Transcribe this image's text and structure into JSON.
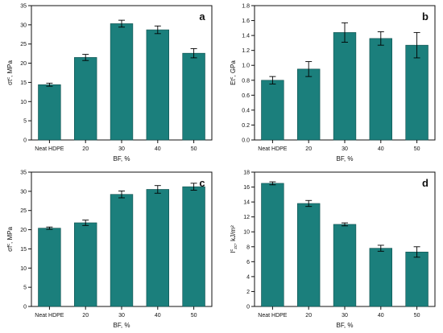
{
  "theme": {
    "bar_fill": "#1b7f7c",
    "bar_stroke": "#0f4f4d",
    "axis": "#111111"
  },
  "chart_data": [
    {
      "type": "bar",
      "panel_label": "a",
      "ylabel_main": "σt",
      "ylabel_sup": "c",
      "ylabel_suffix": ", MPa",
      "xlabel": "BF, %",
      "categories": [
        "Neat HDPE",
        "20",
        "30",
        "40",
        "50"
      ],
      "values": [
        14.4,
        21.5,
        30.3,
        28.7,
        22.6
      ],
      "errors": [
        0.4,
        0.8,
        0.9,
        1.0,
        1.2
      ],
      "ylim": [
        0,
        35
      ],
      "yticks": [
        "0",
        "5",
        "10",
        "15",
        "20",
        "25",
        "30",
        "35"
      ],
      "ytick_values": [
        0,
        5,
        10,
        15,
        20,
        25,
        30,
        35
      ]
    },
    {
      "type": "bar",
      "panel_label": "b",
      "ylabel_main": "Et",
      "ylabel_sup": "c",
      "ylabel_suffix": ", GPa",
      "xlabel": "BF, %",
      "categories": [
        "Neat HDPE",
        "20",
        "30",
        "40",
        "50"
      ],
      "values": [
        0.8,
        0.95,
        1.44,
        1.36,
        1.27
      ],
      "errors": [
        0.05,
        0.1,
        0.13,
        0.09,
        0.17
      ],
      "ylim": [
        0,
        1.8
      ],
      "yticks": [
        "0.0",
        "0.2",
        "0.4",
        "0.6",
        "0.8",
        "1.0",
        "1.2",
        "1.4",
        "1.6",
        "1.8"
      ],
      "ytick_values": [
        0,
        0.2,
        0.4,
        0.6,
        0.8,
        1.0,
        1.2,
        1.4,
        1.6,
        1.8
      ]
    },
    {
      "type": "bar",
      "panel_label": "c",
      "ylabel_main": "σf",
      "ylabel_sup": "c",
      "ylabel_suffix": ", MPa",
      "xlabel": "BF, %",
      "categories": [
        "Neat HDPE",
        "20",
        "30",
        "40",
        "50"
      ],
      "values": [
        20.4,
        21.8,
        29.2,
        30.5,
        31.2
      ],
      "errors": [
        0.3,
        0.7,
        0.9,
        1.0,
        0.9
      ],
      "ylim": [
        0,
        35
      ],
      "yticks": [
        "0",
        "5",
        "10",
        "15",
        "20",
        "25",
        "30",
        "35"
      ],
      "ytick_values": [
        0,
        5,
        10,
        15,
        20,
        25,
        30,
        35
      ]
    },
    {
      "type": "bar",
      "panel_label": "d",
      "ylabel_main": "I",
      "ylabel_sup": "c",
      "ylabel_sub": "zc",
      "ylabel_suffix": ", kJ/m²",
      "xlabel": "BF, %",
      "categories": [
        "Neat HDPE",
        "20",
        "30",
        "40",
        "50"
      ],
      "values": [
        16.5,
        13.8,
        11.0,
        7.8,
        7.3
      ],
      "errors": [
        0.2,
        0.4,
        0.2,
        0.4,
        0.7
      ],
      "ylim": [
        0,
        18
      ],
      "yticks": [
        "0",
        "2",
        "4",
        "6",
        "8",
        "10",
        "12",
        "14",
        "16",
        "18"
      ],
      "ytick_values": [
        0,
        2,
        4,
        6,
        8,
        10,
        12,
        14,
        16,
        18
      ]
    }
  ]
}
